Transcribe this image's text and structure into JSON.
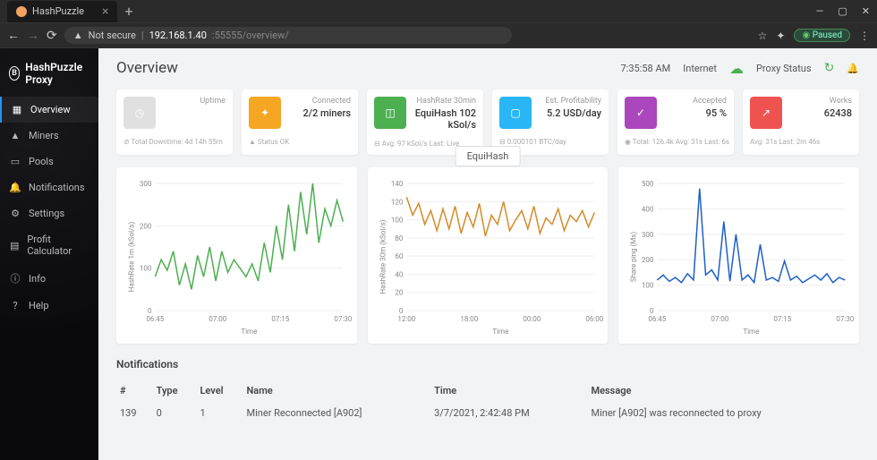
{
  "browser": {
    "tab_title": "HashPuzzle",
    "url_prefix": "192.168.1.40",
    "url_suffix": ":55555/overview/",
    "not_secure": "Not secure",
    "paused": "Paused"
  },
  "app": {
    "name": "HashPuzzle Proxy"
  },
  "sidebar": {
    "items": [
      {
        "label": "Overview",
        "icon": "▦"
      },
      {
        "label": "Miners",
        "icon": "▲"
      },
      {
        "label": "Pools",
        "icon": "▭"
      },
      {
        "label": "Notifications",
        "icon": "🔔"
      },
      {
        "label": "Settings",
        "icon": "⚙"
      },
      {
        "label": "Profit Calculator",
        "icon": "▤"
      },
      {
        "label": "Info",
        "icon": "ⓘ"
      },
      {
        "label": "Help",
        "icon": "?"
      }
    ]
  },
  "header": {
    "title": "Overview",
    "time": "7:35:58 AM",
    "internet": "Internet",
    "proxy_status": "Proxy Status"
  },
  "cards": [
    {
      "label": "Uptime",
      "value": "",
      "footer": "⊘ Total Downtime: 4d 14h 55m",
      "icon_bg": "#e0e0e0",
      "icon": "◷"
    },
    {
      "label": "Connected",
      "value": "2/2 miners",
      "footer": "▲ Status OK",
      "icon_bg": "#f5a623",
      "icon": "✦"
    },
    {
      "label": "HashRate 30min",
      "value": "EquiHash 102 kSol/s",
      "footer": "⊟ Avg: 97 kSol/s  Last: Live",
      "icon_bg": "#4caf50",
      "icon": "◫"
    },
    {
      "label": "Est. Profitability",
      "value": "5.2 USD/day",
      "footer": "⊟ 0.000101 BTC/day",
      "icon_bg": "#29b6f6",
      "icon": "▢"
    },
    {
      "label": "Accepted",
      "value": "95 %",
      "footer": "◉ Total: 126.4k  Avg: 31s  Last: 6s",
      "icon_bg": "#ab47bc",
      "icon": "✓"
    },
    {
      "label": "Works",
      "value": "62438",
      "footer": "Avg: 31s  Last: 2m 46s",
      "icon_bg": "#ef5350",
      "icon": "↗"
    }
  ],
  "algo_badge": "EquiHash",
  "charts": {
    "c1": {
      "ylabel": "HashRate 1m (kSol/s)",
      "xlabel": "Time",
      "color": "#4caf50",
      "yticks": [
        0,
        100,
        200,
        300
      ],
      "xticks": [
        "06:45",
        "07:00",
        "07:15",
        "07:30"
      ],
      "data": [
        80,
        120,
        95,
        140,
        60,
        110,
        50,
        130,
        80,
        150,
        70,
        140,
        90,
        120,
        100,
        80,
        110,
        70,
        160,
        90,
        200,
        120,
        250,
        140,
        280,
        180,
        300,
        160,
        240,
        200,
        260,
        210
      ]
    },
    "c2": {
      "ylabel": "HashRate 30m (kSol/s)",
      "xlabel": "Time",
      "color": "#d48b2a",
      "yticks": [
        0,
        20,
        40,
        60,
        80,
        100,
        120,
        140
      ],
      "xticks": [
        "12:00",
        "18:00",
        "00:00",
        "06:00"
      ],
      "data": [
        125,
        105,
        118,
        95,
        110,
        88,
        112,
        90,
        115,
        85,
        108,
        92,
        118,
        82,
        105,
        95,
        120,
        88,
        100,
        110,
        90,
        115,
        85,
        102,
        95,
        112,
        88,
        105,
        98,
        110,
        92,
        108
      ]
    },
    "c3": {
      "ylabel": "Share ping (Ms)",
      "xlabel": "Time",
      "color": "#1e60c8",
      "yticks": [
        0,
        100,
        200,
        300,
        400,
        500
      ],
      "xticks": [
        "06:45",
        "07:00",
        "07:15",
        "07:30"
      ],
      "data": [
        120,
        140,
        115,
        130,
        110,
        145,
        120,
        480,
        140,
        160,
        120,
        350,
        115,
        300,
        120,
        140,
        110,
        260,
        120,
        130,
        115,
        195,
        120,
        135,
        110,
        125,
        140,
        120,
        145,
        110,
        130,
        120
      ]
    }
  },
  "notifications": {
    "title": "Notifications",
    "columns": [
      "#",
      "Type",
      "Level",
      "Name",
      "Time",
      "Message"
    ],
    "rows": [
      [
        "139",
        "0",
        "1",
        "Miner Reconnected [A902]",
        "3/7/2021, 2:42:48 PM",
        "Miner [A902] was reconnected to proxy"
      ]
    ]
  }
}
